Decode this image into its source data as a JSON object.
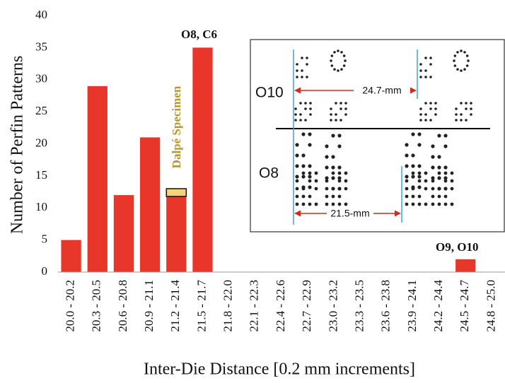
{
  "chart_data": {
    "type": "bar",
    "x_label": "Inter-Die Distance [0.2 mm increments]",
    "y_label": "Number of Perfin Patterns",
    "categories": [
      "20.0 - 20.2",
      "20.3 - 20.5",
      "20.6 - 20.8",
      "20.9 - 21.1",
      "21.2 - 21.4",
      "21.5 - 21.7",
      "21.8 - 22.0",
      "22.1 - 22.3",
      "22.4 - 22.6",
      "22.7 - 22.9",
      "23.0 - 23.2",
      "23.3 - 23.5",
      "23.6 - 23.8",
      "23.9 - 24.1",
      "24.2 - 24.4",
      "24.5 - 24.7",
      "24.8 - 25.0"
    ],
    "values": [
      5,
      29,
      12,
      21,
      12,
      35,
      0,
      0,
      0,
      0,
      0,
      0,
      0,
      0,
      0,
      2,
      0
    ],
    "color": "#e8372a",
    "ylim": [
      0,
      40
    ],
    "yticks": [
      0,
      5,
      10,
      15,
      20,
      25,
      30,
      35,
      40
    ],
    "annotations": [
      "O8, C6",
      "Dalpé Specimen",
      "O9, O10"
    ],
    "inset": {
      "rows": [
        "O10",
        "O8"
      ],
      "measurements": [
        "24.7-mm",
        "21.5-mm"
      ]
    }
  }
}
